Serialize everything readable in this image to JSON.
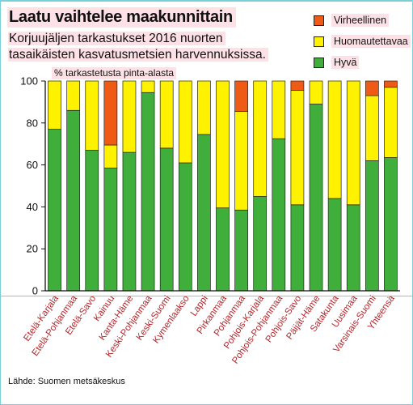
{
  "title": "Laatu vaihtelee maakunnittain",
  "subtitle_line1": "Korjuujäljen tarkastukset 2016 nuorten",
  "subtitle_line2": "tasaikäisten kasvatusmetsien harvennuksissa.",
  "legend": [
    {
      "label": "Virheellinen",
      "color": "#ef5a14"
    },
    {
      "label": "Huomautettavaa",
      "color": "#fff200"
    },
    {
      "label": "Hyvä",
      "color": "#3fae3a"
    }
  ],
  "source": "Lähde: Suomen metsäkeskus",
  "chart_data": {
    "type": "bar",
    "stacked": true,
    "ylabel": "%  tarkastetusta pinta-alasta",
    "ylim": [
      0,
      100
    ],
    "yticks": [
      0,
      20,
      40,
      60,
      80,
      100
    ],
    "grid": false,
    "legend_position": "top-right",
    "categories": [
      "Etelä-Karjala",
      "Etelä-Pohjanmaa",
      "Etelä-Savo",
      "Kainuu",
      "Kanta-Häme",
      "Keski-Pohjanmaa",
      "Keski-Suomi",
      "Kymenlaakso",
      "Lappi",
      "Pirkanmaa",
      "Pohjanmaa",
      "Pohjois-Karjala",
      "Pohjois-Pohjanmaa",
      "Pohjois-Savo",
      "Päijät-Häme",
      "Satakunta",
      "Uusimaa",
      "Varsinais-Suomi",
      "Yhteensä"
    ],
    "series": [
      {
        "name": "Hyvä",
        "color": "#3fae3a",
        "values": [
          77,
          86,
          67,
          58.5,
          66,
          94.5,
          68,
          61,
          74.5,
          39.5,
          38.5,
          45,
          72.5,
          41,
          89,
          44,
          41,
          62,
          63.5
        ]
      },
      {
        "name": "Huomautettavaa",
        "color": "#fff200",
        "values": [
          23,
          14,
          33,
          11,
          34,
          5.5,
          32,
          39,
          25.5,
          60.5,
          47,
          55,
          27.5,
          54.5,
          11,
          56,
          59,
          31,
          33.5
        ]
      },
      {
        "name": "Virheellinen",
        "color": "#ef5a14",
        "values": [
          0,
          0,
          0,
          30.5,
          0,
          0,
          0,
          0,
          0,
          0,
          14.5,
          0,
          0,
          4.5,
          0,
          0,
          0,
          7,
          3
        ]
      }
    ]
  }
}
